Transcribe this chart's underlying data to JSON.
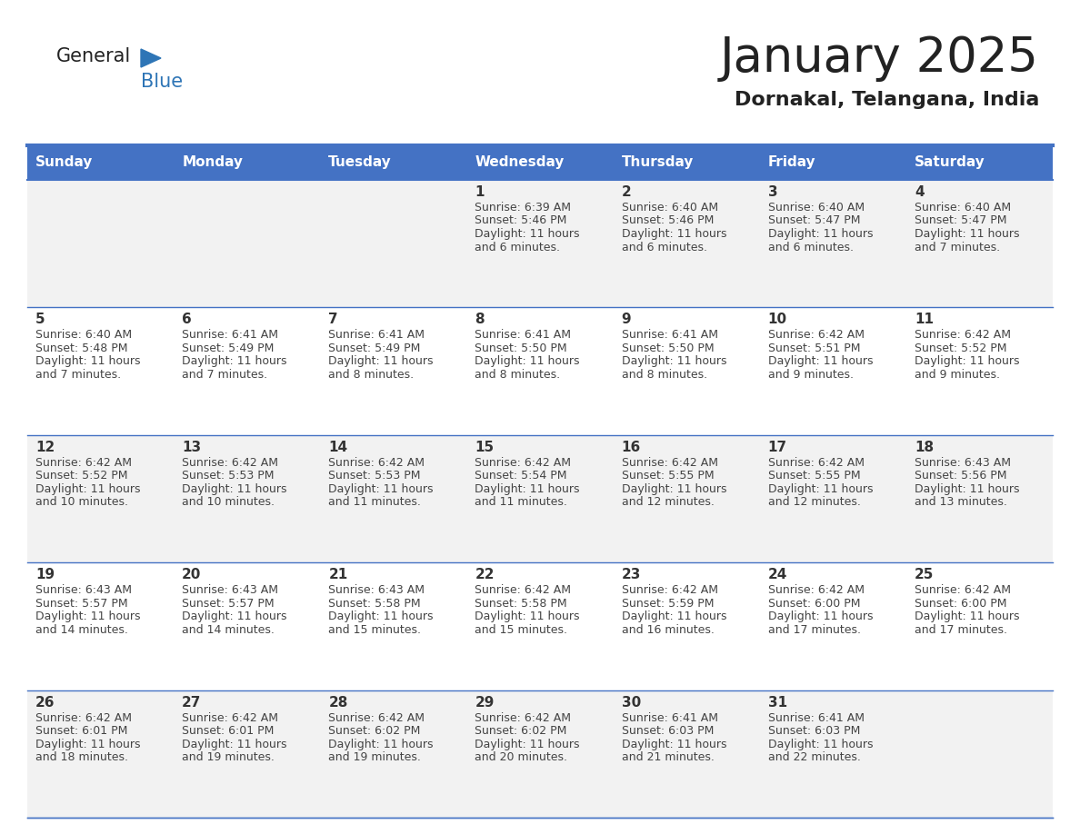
{
  "title": "January 2025",
  "subtitle": "Dornakal, Telangana, India",
  "days_of_week": [
    "Sunday",
    "Monday",
    "Tuesday",
    "Wednesday",
    "Thursday",
    "Friday",
    "Saturday"
  ],
  "header_bg": "#4472C4",
  "header_text": "#FFFFFF",
  "row_bg_odd": "#F2F2F2",
  "row_bg_even": "#FFFFFF",
  "day_number_color": "#333333",
  "cell_text_color": "#444444",
  "border_color": "#4472C4",
  "title_color": "#222222",
  "subtitle_color": "#333333",
  "logo_general_color": "#222222",
  "logo_blue_color": "#2E75B6",
  "calendar_data": [
    [
      {
        "day": null,
        "sunrise": null,
        "sunset": null,
        "daylight": null
      },
      {
        "day": null,
        "sunrise": null,
        "sunset": null,
        "daylight": null
      },
      {
        "day": null,
        "sunrise": null,
        "sunset": null,
        "daylight": null
      },
      {
        "day": 1,
        "sunrise": "6:39 AM",
        "sunset": "5:46 PM",
        "daylight_line1": "Daylight: 11 hours",
        "daylight_line2": "and 6 minutes."
      },
      {
        "day": 2,
        "sunrise": "6:40 AM",
        "sunset": "5:46 PM",
        "daylight_line1": "Daylight: 11 hours",
        "daylight_line2": "and 6 minutes."
      },
      {
        "day": 3,
        "sunrise": "6:40 AM",
        "sunset": "5:47 PM",
        "daylight_line1": "Daylight: 11 hours",
        "daylight_line2": "and 6 minutes."
      },
      {
        "day": 4,
        "sunrise": "6:40 AM",
        "sunset": "5:47 PM",
        "daylight_line1": "Daylight: 11 hours",
        "daylight_line2": "and 7 minutes."
      }
    ],
    [
      {
        "day": 5,
        "sunrise": "6:40 AM",
        "sunset": "5:48 PM",
        "daylight_line1": "Daylight: 11 hours",
        "daylight_line2": "and 7 minutes."
      },
      {
        "day": 6,
        "sunrise": "6:41 AM",
        "sunset": "5:49 PM",
        "daylight_line1": "Daylight: 11 hours",
        "daylight_line2": "and 7 minutes."
      },
      {
        "day": 7,
        "sunrise": "6:41 AM",
        "sunset": "5:49 PM",
        "daylight_line1": "Daylight: 11 hours",
        "daylight_line2": "and 8 minutes."
      },
      {
        "day": 8,
        "sunrise": "6:41 AM",
        "sunset": "5:50 PM",
        "daylight_line1": "Daylight: 11 hours",
        "daylight_line2": "and 8 minutes."
      },
      {
        "day": 9,
        "sunrise": "6:41 AM",
        "sunset": "5:50 PM",
        "daylight_line1": "Daylight: 11 hours",
        "daylight_line2": "and 8 minutes."
      },
      {
        "day": 10,
        "sunrise": "6:42 AM",
        "sunset": "5:51 PM",
        "daylight_line1": "Daylight: 11 hours",
        "daylight_line2": "and 9 minutes."
      },
      {
        "day": 11,
        "sunrise": "6:42 AM",
        "sunset": "5:52 PM",
        "daylight_line1": "Daylight: 11 hours",
        "daylight_line2": "and 9 minutes."
      }
    ],
    [
      {
        "day": 12,
        "sunrise": "6:42 AM",
        "sunset": "5:52 PM",
        "daylight_line1": "Daylight: 11 hours",
        "daylight_line2": "and 10 minutes."
      },
      {
        "day": 13,
        "sunrise": "6:42 AM",
        "sunset": "5:53 PM",
        "daylight_line1": "Daylight: 11 hours",
        "daylight_line2": "and 10 minutes."
      },
      {
        "day": 14,
        "sunrise": "6:42 AM",
        "sunset": "5:53 PM",
        "daylight_line1": "Daylight: 11 hours",
        "daylight_line2": "and 11 minutes."
      },
      {
        "day": 15,
        "sunrise": "6:42 AM",
        "sunset": "5:54 PM",
        "daylight_line1": "Daylight: 11 hours",
        "daylight_line2": "and 11 minutes."
      },
      {
        "day": 16,
        "sunrise": "6:42 AM",
        "sunset": "5:55 PM",
        "daylight_line1": "Daylight: 11 hours",
        "daylight_line2": "and 12 minutes."
      },
      {
        "day": 17,
        "sunrise": "6:42 AM",
        "sunset": "5:55 PM",
        "daylight_line1": "Daylight: 11 hours",
        "daylight_line2": "and 12 minutes."
      },
      {
        "day": 18,
        "sunrise": "6:43 AM",
        "sunset": "5:56 PM",
        "daylight_line1": "Daylight: 11 hours",
        "daylight_line2": "and 13 minutes."
      }
    ],
    [
      {
        "day": 19,
        "sunrise": "6:43 AM",
        "sunset": "5:57 PM",
        "daylight_line1": "Daylight: 11 hours",
        "daylight_line2": "and 14 minutes."
      },
      {
        "day": 20,
        "sunrise": "6:43 AM",
        "sunset": "5:57 PM",
        "daylight_line1": "Daylight: 11 hours",
        "daylight_line2": "and 14 minutes."
      },
      {
        "day": 21,
        "sunrise": "6:43 AM",
        "sunset": "5:58 PM",
        "daylight_line1": "Daylight: 11 hours",
        "daylight_line2": "and 15 minutes."
      },
      {
        "day": 22,
        "sunrise": "6:42 AM",
        "sunset": "5:58 PM",
        "daylight_line1": "Daylight: 11 hours",
        "daylight_line2": "and 15 minutes."
      },
      {
        "day": 23,
        "sunrise": "6:42 AM",
        "sunset": "5:59 PM",
        "daylight_line1": "Daylight: 11 hours",
        "daylight_line2": "and 16 minutes."
      },
      {
        "day": 24,
        "sunrise": "6:42 AM",
        "sunset": "6:00 PM",
        "daylight_line1": "Daylight: 11 hours",
        "daylight_line2": "and 17 minutes."
      },
      {
        "day": 25,
        "sunrise": "6:42 AM",
        "sunset": "6:00 PM",
        "daylight_line1": "Daylight: 11 hours",
        "daylight_line2": "and 17 minutes."
      }
    ],
    [
      {
        "day": 26,
        "sunrise": "6:42 AM",
        "sunset": "6:01 PM",
        "daylight_line1": "Daylight: 11 hours",
        "daylight_line2": "and 18 minutes."
      },
      {
        "day": 27,
        "sunrise": "6:42 AM",
        "sunset": "6:01 PM",
        "daylight_line1": "Daylight: 11 hours",
        "daylight_line2": "and 19 minutes."
      },
      {
        "day": 28,
        "sunrise": "6:42 AM",
        "sunset": "6:02 PM",
        "daylight_line1": "Daylight: 11 hours",
        "daylight_line2": "and 19 minutes."
      },
      {
        "day": 29,
        "sunrise": "6:42 AM",
        "sunset": "6:02 PM",
        "daylight_line1": "Daylight: 11 hours",
        "daylight_line2": "and 20 minutes."
      },
      {
        "day": 30,
        "sunrise": "6:41 AM",
        "sunset": "6:03 PM",
        "daylight_line1": "Daylight: 11 hours",
        "daylight_line2": "and 21 minutes."
      },
      {
        "day": 31,
        "sunrise": "6:41 AM",
        "sunset": "6:03 PM",
        "daylight_line1": "Daylight: 11 hours",
        "daylight_line2": "and 22 minutes."
      },
      {
        "day": null,
        "sunrise": null,
        "sunset": null,
        "daylight_line1": null,
        "daylight_line2": null
      }
    ]
  ]
}
